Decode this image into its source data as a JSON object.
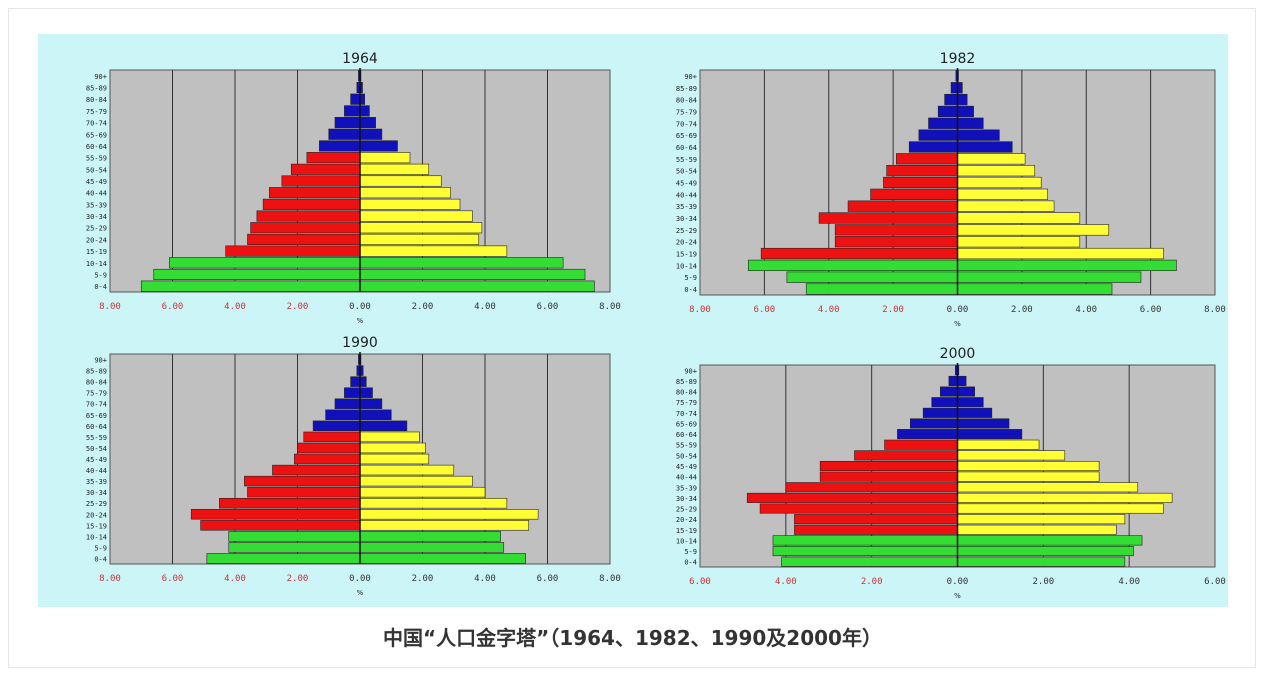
{
  "caption": "中国“人口金字塔”（1964、1982、1990及2000年）",
  "colors": {
    "panel_bg": "#ccf5f8",
    "plot_bg": "#c0c0c0",
    "male_youth": "#33dd33",
    "male_mid": "#ee1111",
    "male_old": "#1111bb",
    "female_youth": "#33dd33",
    "female_mid": "#ffff33",
    "female_old": "#1111bb",
    "left_tick_color": "#cc3333",
    "right_tick_color": "#333333"
  },
  "age_groups": [
    "0-4",
    "5-9",
    "10-14",
    "15-19",
    "20-24",
    "25-29",
    "30-34",
    "35-39",
    "40-44",
    "45-49",
    "50-54",
    "55-59",
    "60-64",
    "65-69",
    "70-74",
    "75-79",
    "80-84",
    "85-89",
    "90+"
  ],
  "chart_data": [
    {
      "type": "bar",
      "orientation": "horizontal-pyramid",
      "title": "1964",
      "xlabel": "%",
      "xlim": [
        -8,
        8
      ],
      "left_ticks": [
        "8.00",
        "6.00",
        "4.00",
        "2.00"
      ],
      "right_ticks": [
        "0.00",
        "2.00",
        "4.00",
        "6.00",
        "8.00"
      ],
      "series": [
        {
          "side": "left",
          "values": [
            7.0,
            6.6,
            6.1,
            4.3,
            3.6,
            3.5,
            3.3,
            3.1,
            2.9,
            2.5,
            2.2,
            1.7,
            1.3,
            1.0,
            0.8,
            0.5,
            0.3,
            0.1,
            0.05
          ]
        },
        {
          "side": "right",
          "values": [
            7.5,
            7.2,
            6.5,
            4.7,
            3.8,
            3.9,
            3.6,
            3.2,
            2.9,
            2.6,
            2.2,
            1.6,
            1.2,
            0.7,
            0.5,
            0.3,
            0.15,
            0.08,
            0.03
          ]
        }
      ]
    },
    {
      "type": "bar",
      "orientation": "horizontal-pyramid",
      "title": "1982",
      "xlabel": "%",
      "xlim": [
        -8,
        8
      ],
      "left_ticks": [
        "8.00",
        "6.00",
        "4.00",
        "2.00"
      ],
      "right_ticks": [
        "0.00",
        "2.00",
        "4.00",
        "6.00",
        "8.00"
      ],
      "series": [
        {
          "side": "left",
          "values": [
            4.7,
            5.3,
            6.5,
            6.1,
            3.8,
            3.8,
            4.3,
            3.4,
            2.7,
            2.3,
            2.2,
            1.9,
            1.5,
            1.2,
            0.9,
            0.6,
            0.4,
            0.2,
            0.05
          ]
        },
        {
          "side": "right",
          "values": [
            4.8,
            5.7,
            6.8,
            6.4,
            3.8,
            4.7,
            3.8,
            3.0,
            2.8,
            2.6,
            2.4,
            2.1,
            1.7,
            1.3,
            0.8,
            0.5,
            0.3,
            0.15,
            0.03
          ]
        }
      ]
    },
    {
      "type": "bar",
      "orientation": "horizontal-pyramid",
      "title": "1990",
      "xlabel": "%",
      "xlim": [
        -8,
        8
      ],
      "left_ticks": [
        "8.00",
        "6.00",
        "4.00",
        "2.00"
      ],
      "right_ticks": [
        "0.00",
        "2.00",
        "4.00",
        "6.00",
        "8.00"
      ],
      "series": [
        {
          "side": "left",
          "values": [
            4.9,
            4.2,
            4.2,
            5.1,
            5.4,
            4.5,
            3.6,
            3.7,
            2.8,
            2.1,
            2.0,
            1.8,
            1.5,
            1.1,
            0.8,
            0.5,
            0.3,
            0.1,
            0.05
          ]
        },
        {
          "side": "right",
          "values": [
            5.3,
            4.6,
            4.5,
            5.4,
            5.7,
            4.7,
            4.0,
            3.6,
            3.0,
            2.2,
            2.1,
            1.9,
            1.5,
            1.0,
            0.7,
            0.4,
            0.2,
            0.1,
            0.03
          ]
        }
      ]
    },
    {
      "type": "bar",
      "orientation": "horizontal-pyramid",
      "title": "2000",
      "xlabel": "%",
      "xlim": [
        -6,
        6
      ],
      "left_ticks": [
        "6.00",
        "4.00",
        "2.00"
      ],
      "right_ticks": [
        "0.00",
        "2.00",
        "4.00",
        "6.00"
      ],
      "series": [
        {
          "side": "left",
          "values": [
            4.1,
            4.3,
            4.3,
            3.8,
            3.8,
            4.6,
            4.9,
            4.0,
            3.2,
            3.2,
            2.4,
            1.7,
            1.4,
            1.1,
            0.8,
            0.6,
            0.4,
            0.2,
            0.05
          ]
        },
        {
          "side": "right",
          "values": [
            3.9,
            4.1,
            4.3,
            3.7,
            3.9,
            4.8,
            5.0,
            4.2,
            3.3,
            3.3,
            2.5,
            1.9,
            1.5,
            1.2,
            0.8,
            0.6,
            0.4,
            0.2,
            0.03
          ]
        }
      ]
    }
  ]
}
